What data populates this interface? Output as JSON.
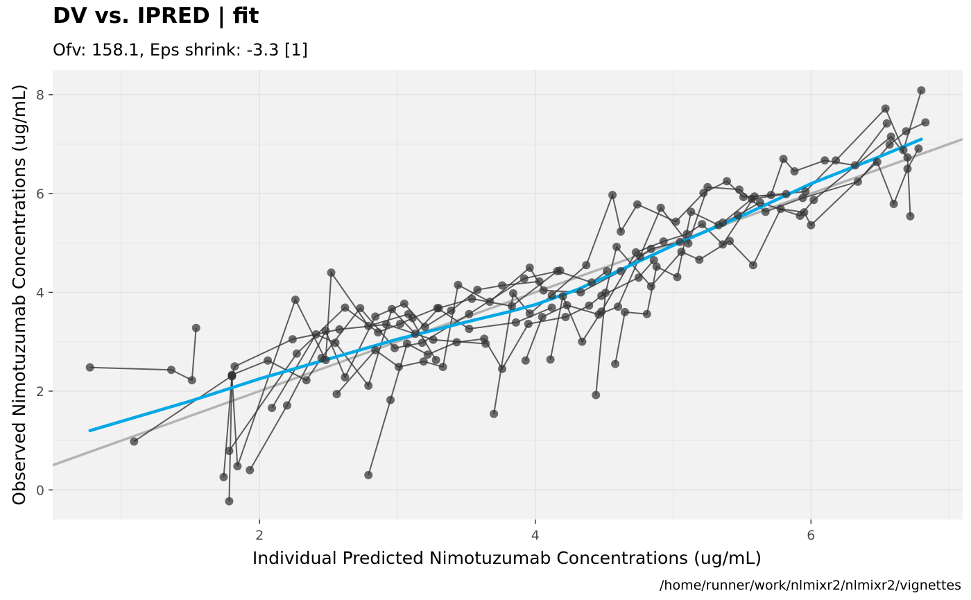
{
  "chart_data": {
    "type": "scatter",
    "title": "DV vs. IPRED | fit",
    "subtitle": "Ofv: 158.1, Eps shrink: -3.3 [1]",
    "xlabel": "Individual Predicted Nimotuzumab Concentrations (ug/mL)",
    "ylabel": "Observed Nimotuzumab Concentrations (ug/mL)",
    "caption": "/home/runner/work/nlmixr2/nlmixr2/vignettes",
    "xlim": [
      0.5,
      7.1
    ],
    "ylim": [
      -0.6,
      8.5
    ],
    "x_ticks": [
      2,
      4,
      6
    ],
    "x_tick_labels": [
      "2",
      "4",
      "6"
    ],
    "y_ticks": [
      0,
      2,
      4,
      6,
      8
    ],
    "y_tick_labels": [
      "0",
      "2",
      "4",
      "6",
      "8"
    ],
    "grid": true,
    "colors": {
      "panel_background": "#f2f2f2",
      "grid": "#e3e3e3",
      "points": "#333333",
      "lines": "#333333",
      "smooth": "#00a9e6",
      "identity": "#b3b3b3"
    },
    "identity_line": {
      "slope": 1,
      "intercept": 0
    },
    "smooth": [
      [
        0.77,
        1.2
      ],
      [
        1.5,
        1.8
      ],
      [
        2.0,
        2.25
      ],
      [
        2.5,
        2.65
      ],
      [
        3.0,
        3.05
      ],
      [
        3.5,
        3.4
      ],
      [
        3.8,
        3.6
      ],
      [
        4.0,
        3.75
      ],
      [
        4.3,
        4.05
      ],
      [
        4.5,
        4.3
      ],
      [
        5.0,
        4.95
      ],
      [
        5.5,
        5.55
      ],
      [
        6.0,
        6.2
      ],
      [
        6.5,
        6.75
      ],
      [
        6.8,
        7.1
      ]
    ],
    "subjects": [
      [
        [
          0.77,
          2.48
        ],
        [
          1.36,
          2.43
        ],
        [
          1.51,
          2.22
        ],
        [
          1.54,
          3.28
        ]
      ],
      [
        [
          1.09,
          0.98
        ],
        [
          1.8,
          2.31
        ],
        [
          1.82,
          2.5
        ],
        [
          2.24,
          3.05
        ],
        [
          2.58,
          3.25
        ],
        [
          2.92,
          3.35
        ],
        [
          3.26,
          3.04
        ],
        [
          3.64,
          2.96
        ]
      ],
      [
        [
          1.74,
          0.26
        ],
        [
          1.8,
          2.3
        ],
        [
          1.84,
          0.48
        ],
        [
          2.26,
          3.85
        ],
        [
          2.48,
          2.63
        ],
        [
          2.52,
          4.4
        ],
        [
          2.79,
          3.32
        ],
        [
          3.08,
          3.56
        ],
        [
          3.28,
          2.63
        ]
      ],
      [
        [
          1.78,
          0.79
        ],
        [
          2.27,
          2.76
        ],
        [
          2.62,
          3.69
        ],
        [
          2.86,
          3.19
        ],
        [
          3.02,
          3.36
        ],
        [
          3.11,
          3.48
        ],
        [
          3.29,
          3.68
        ],
        [
          3.52,
          3.26
        ],
        [
          3.86,
          3.39
        ],
        [
          4.12,
          3.69
        ]
      ],
      [
        [
          1.78,
          -0.23
        ],
        [
          1.8,
          2.33
        ],
        [
          2.06,
          2.62
        ],
        [
          2.34,
          2.22
        ],
        [
          2.45,
          2.67
        ],
        [
          2.73,
          3.68
        ],
        [
          2.98,
          2.87
        ],
        [
          3.18,
          2.98
        ],
        [
          3.52,
          3.56
        ],
        [
          3.92,
          4.28
        ],
        [
          4.18,
          4.44
        ]
      ],
      [
        [
          1.93,
          0.4
        ],
        [
          2.2,
          1.71
        ],
        [
          2.48,
          3.22
        ],
        [
          2.62,
          2.28
        ],
        [
          2.84,
          3.51
        ],
        [
          3.05,
          3.77
        ],
        [
          3.2,
          3.3
        ],
        [
          3.39,
          3.63
        ],
        [
          3.58,
          4.05
        ],
        [
          3.76,
          4.14
        ],
        [
          4.03,
          4.22
        ]
      ],
      [
        [
          2.09,
          1.66
        ],
        [
          2.41,
          3.15
        ],
        [
          2.55,
          2.98
        ],
        [
          2.79,
          2.11
        ],
        [
          2.96,
          3.66
        ],
        [
          3.13,
          3.16
        ],
        [
          3.3,
          3.68
        ],
        [
          3.54,
          3.87
        ],
        [
          3.83,
          3.72
        ],
        [
          4.16,
          4.43
        ],
        [
          4.41,
          4.2
        ],
        [
          4.52,
          4.43
        ]
      ],
      [
        [
          2.79,
          0.3
        ],
        [
          2.95,
          1.82
        ],
        [
          3.07,
          2.96
        ],
        [
          3.22,
          2.74
        ],
        [
          3.43,
          2.99
        ],
        [
          3.63,
          3.06
        ],
        [
          3.76,
          2.45
        ],
        [
          3.95,
          3.36
        ],
        [
          4.22,
          3.5
        ],
        [
          4.39,
          3.73
        ],
        [
          4.48,
          3.93
        ],
        [
          4.75,
          4.3
        ],
        [
          4.86,
          4.65
        ]
      ],
      [
        [
          2.56,
          1.94
        ],
        [
          2.84,
          2.83
        ],
        [
          3.01,
          2.49
        ],
        [
          3.19,
          2.6
        ],
        [
          3.33,
          2.49
        ],
        [
          3.44,
          4.15
        ],
        [
          3.67,
          3.81
        ],
        [
          3.96,
          4.5
        ],
        [
          4.06,
          4.04
        ],
        [
          4.33,
          4.0
        ],
        [
          4.62,
          4.43
        ],
        [
          4.84,
          4.88
        ],
        [
          5.05,
          5.02
        ],
        [
          5.36,
          5.41
        ],
        [
          5.57,
          5.89
        ],
        [
          5.82,
          5.99
        ]
      ],
      [
        [
          3.7,
          1.54
        ],
        [
          3.84,
          3.98
        ],
        [
          3.96,
          3.57
        ],
        [
          4.12,
          3.94
        ],
        [
          4.37,
          4.55
        ],
        [
          4.56,
          5.97
        ],
        [
          4.62,
          5.23
        ],
        [
          4.74,
          5.78
        ],
        [
          5.02,
          5.43
        ],
        [
          5.22,
          6.01
        ],
        [
          5.39,
          6.25
        ],
        [
          5.51,
          5.93
        ],
        [
          5.71,
          5.97
        ],
        [
          5.8,
          6.7
        ],
        [
          5.88,
          6.45
        ],
        [
          6.1,
          6.67
        ],
        [
          6.32,
          6.57
        ],
        [
          6.55,
          7.42
        ]
      ],
      [
        [
          3.93,
          2.62
        ],
        [
          4.05,
          3.5
        ],
        [
          4.23,
          3.74
        ],
        [
          4.46,
          3.55
        ],
        [
          4.6,
          3.71
        ],
        [
          4.76,
          4.73
        ],
        [
          4.91,
          5.71
        ],
        [
          5.11,
          4.99
        ],
        [
          5.25,
          6.13
        ],
        [
          5.48,
          6.08
        ],
        [
          5.67,
          5.63
        ],
        [
          5.94,
          5.91
        ],
        [
          6.34,
          6.24
        ],
        [
          6.57,
          6.99
        ],
        [
          6.69,
          7.26
        ],
        [
          6.83,
          7.44
        ]
      ],
      [
        [
          4.11,
          2.64
        ],
        [
          4.2,
          3.92
        ],
        [
          4.34,
          3.0
        ],
        [
          4.48,
          3.61
        ],
        [
          4.73,
          4.81
        ],
        [
          4.93,
          5.03
        ],
        [
          5.1,
          5.18
        ],
        [
          5.21,
          5.38
        ],
        [
          5.36,
          4.97
        ],
        [
          5.59,
          5.94
        ],
        [
          5.96,
          6.04
        ],
        [
          6.18,
          6.67
        ],
        [
          6.54,
          7.72
        ],
        [
          6.67,
          6.88
        ],
        [
          6.8,
          8.09
        ]
      ],
      [
        [
          4.44,
          1.92
        ],
        [
          4.51,
          3.99
        ],
        [
          4.59,
          4.92
        ],
        [
          4.84,
          4.12
        ],
        [
          5.06,
          4.82
        ],
        [
          5.19,
          4.66
        ],
        [
          5.41,
          5.04
        ],
        [
          5.58,
          4.55
        ],
        [
          5.78,
          5.69
        ],
        [
          5.95,
          5.62
        ],
        [
          6.0,
          5.36
        ],
        [
          6.48,
          6.64
        ],
        [
          6.6,
          5.79
        ],
        [
          6.7,
          6.5
        ],
        [
          6.78,
          6.91
        ]
      ],
      [
        [
          4.58,
          2.55
        ],
        [
          4.65,
          3.6
        ],
        [
          4.81,
          3.56
        ],
        [
          4.88,
          4.52
        ],
        [
          5.03,
          4.31
        ],
        [
          5.13,
          5.63
        ],
        [
          5.33,
          5.36
        ],
        [
          5.47,
          5.56
        ],
        [
          5.63,
          5.82
        ],
        [
          5.92,
          5.55
        ],
        [
          6.02,
          5.87
        ],
        [
          6.58,
          7.15
        ],
        [
          6.7,
          6.73
        ],
        [
          6.72,
          5.54
        ]
      ]
    ]
  }
}
